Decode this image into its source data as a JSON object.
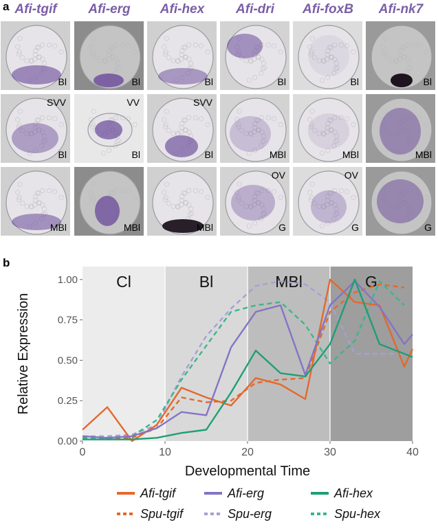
{
  "panel_a": {
    "letter": "a",
    "columns": [
      {
        "gene": "Afi-tgif",
        "cells": [
          {
            "tr": "",
            "br": "Bl"
          },
          {
            "tr": "SVV",
            "br": "Bl"
          },
          {
            "tr": "",
            "br": "MBl"
          }
        ]
      },
      {
        "gene": "Afi-erg",
        "cells": [
          {
            "tr": "",
            "br": "Bl"
          },
          {
            "tr": "VV",
            "br": "Bl"
          },
          {
            "tr": "",
            "br": "MBl"
          }
        ]
      },
      {
        "gene": "Afi-hex",
        "cells": [
          {
            "tr": "",
            "br": "Bl"
          },
          {
            "tr": "SVV",
            "br": "Bl"
          },
          {
            "tr": "",
            "br": "MBl"
          }
        ]
      },
      {
        "gene": "Afi-dri",
        "cells": [
          {
            "tr": "",
            "br": "Bl"
          },
          {
            "tr": "",
            "br": "MBl"
          },
          {
            "tr": "OV",
            "br": "G"
          }
        ]
      },
      {
        "gene": "Afi-foxB",
        "cells": [
          {
            "tr": "",
            "br": "Bl"
          },
          {
            "tr": "",
            "br": "MBl"
          },
          {
            "tr": "OV",
            "br": "G"
          }
        ]
      },
      {
        "gene": "Afi-nk7",
        "cells": [
          {
            "tr": "",
            "br": "Bl"
          },
          {
            "tr": "",
            "br": "MBl"
          },
          {
            "tr": "",
            "br": "G"
          }
        ]
      }
    ]
  },
  "panel_b": {
    "letter": "b"
  },
  "chart_data": {
    "type": "line",
    "xlabel": "Developmental Time",
    "ylabel": "Relative Expression",
    "xlim": [
      0,
      40
    ],
    "ylim": [
      0,
      1.08
    ],
    "xticks": [
      "0",
      "10",
      "20",
      "30",
      "40"
    ],
    "yticks": [
      "0.00",
      "0.25",
      "0.50",
      "0.75",
      "1.00"
    ],
    "stages": [
      {
        "label": "Cl",
        "x0": 0,
        "x1": 10,
        "shade": "#ececec"
      },
      {
        "label": "Bl",
        "x0": 10,
        "x1": 20,
        "shade": "#d9d9d9"
      },
      {
        "label": "MBl",
        "x0": 20,
        "x1": 30,
        "shade": "#bdbdbd"
      },
      {
        "label": "G",
        "x0": 30,
        "x1": 40,
        "shade": "#9e9e9e"
      }
    ],
    "series": [
      {
        "name": "Afi-tgif",
        "color": "#e4682c",
        "dash": false,
        "x": [
          0,
          3,
          6,
          9,
          12,
          15,
          18,
          21,
          24,
          27,
          30,
          33,
          36,
          39,
          40
        ],
        "y": [
          0.07,
          0.21,
          0.0,
          0.1,
          0.33,
          0.27,
          0.22,
          0.39,
          0.35,
          0.26,
          1.0,
          0.86,
          0.84,
          0.46,
          0.57
        ]
      },
      {
        "name": "Afi-erg",
        "color": "#8474c4",
        "dash": false,
        "x": [
          0,
          3,
          6,
          9,
          12,
          15,
          18,
          21,
          24,
          27,
          30,
          33,
          36,
          39,
          40
        ],
        "y": [
          0.03,
          0.02,
          0.03,
          0.08,
          0.18,
          0.16,
          0.58,
          0.8,
          0.84,
          0.41,
          0.84,
          0.99,
          0.83,
          0.6,
          0.66
        ]
      },
      {
        "name": "Afi-hex",
        "color": "#1f9e74",
        "dash": false,
        "x": [
          0,
          3,
          6,
          9,
          12,
          15,
          18,
          21,
          24,
          27,
          30,
          33,
          36,
          39,
          40
        ],
        "y": [
          0.01,
          0.01,
          0.01,
          0.02,
          0.05,
          0.07,
          0.3,
          0.56,
          0.42,
          0.4,
          0.6,
          1.0,
          0.6,
          0.54,
          0.52
        ]
      },
      {
        "name": "Spu-tgif",
        "color": "#e4682c",
        "dash": true,
        "x": [
          0,
          3,
          6,
          9,
          12,
          15,
          18,
          21,
          24,
          27,
          30,
          33,
          36,
          39
        ],
        "y": [
          0.02,
          0.01,
          0.02,
          0.08,
          0.27,
          0.24,
          0.25,
          0.36,
          0.38,
          0.39,
          0.8,
          0.92,
          0.97,
          0.95
        ]
      },
      {
        "name": "Spu-erg",
        "color": "#a6a0d6",
        "dash": true,
        "x": [
          0,
          3,
          6,
          9,
          12,
          15,
          18,
          21,
          24,
          27,
          30,
          33,
          36,
          39
        ],
        "y": [
          0.03,
          0.03,
          0.04,
          0.1,
          0.4,
          0.65,
          0.82,
          0.96,
          0.99,
          0.97,
          0.86,
          0.54,
          0.54,
          0.54
        ]
      },
      {
        "name": "Spu-hex",
        "color": "#3cb68b",
        "dash": true,
        "x": [
          0,
          3,
          6,
          9,
          12,
          15,
          18,
          21,
          24,
          27,
          30,
          33,
          36,
          39
        ],
        "y": [
          0.02,
          0.02,
          0.03,
          0.13,
          0.38,
          0.59,
          0.8,
          0.84,
          0.86,
          0.72,
          0.48,
          0.62,
          0.99,
          0.84
        ]
      }
    ]
  }
}
